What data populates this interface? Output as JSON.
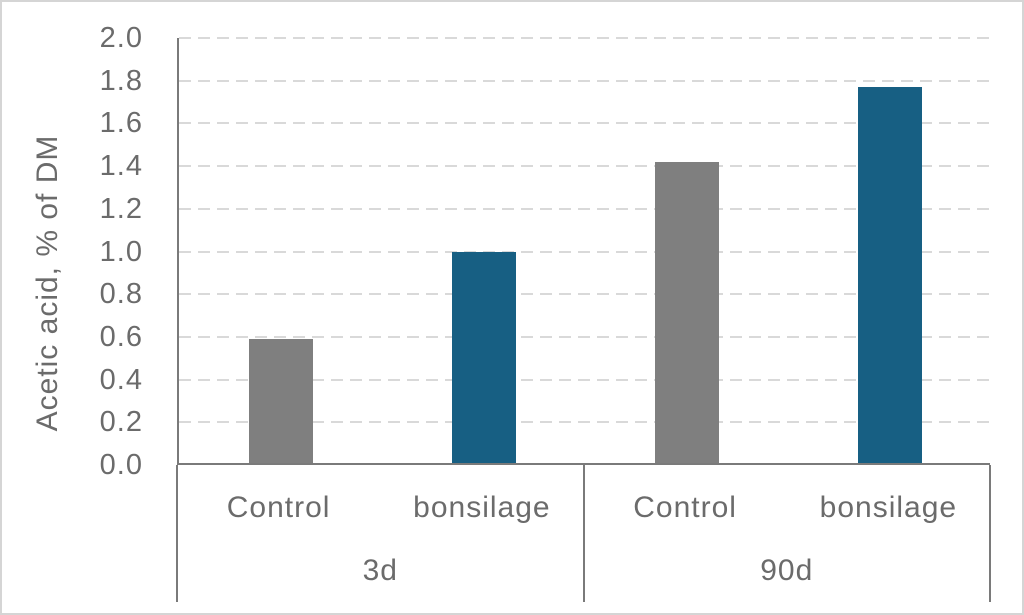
{
  "chart_data": {
    "type": "bar",
    "title": "",
    "ylabel": "Acetic acid, % of DM",
    "xlabel": "",
    "ylim": [
      0,
      2.0
    ],
    "ytick_step": 0.2,
    "y_ticks": [
      "0.0",
      "0.2",
      "0.4",
      "0.6",
      "0.8",
      "1.0",
      "1.2",
      "1.4",
      "1.6",
      "1.8",
      "2.0"
    ],
    "grid": "horizontal-dashed",
    "legend_position": "none",
    "categories": [
      "Control (3d)",
      "bonsilage (3d)",
      "Control (90d)",
      "bonsilage (90d)"
    ],
    "values": [
      0.58,
      0.99,
      1.41,
      1.76
    ],
    "groups": [
      {
        "label": "3d",
        "bars": [
          {
            "label": "Control",
            "series": "Control",
            "value": 0.58
          },
          {
            "label": "bonsilage",
            "series": "bonsilage",
            "value": 0.99
          }
        ]
      },
      {
        "label": "90d",
        "bars": [
          {
            "label": "Control",
            "series": "Control",
            "value": 1.41
          },
          {
            "label": "bonsilage",
            "series": "bonsilage",
            "value": 1.76
          }
        ]
      }
    ],
    "series_colors": {
      "Control": "#7f7f7f",
      "bonsilage": "#175f83"
    },
    "axis_color": "#7a7a7a",
    "grid_color": "#d9d9d9",
    "text_color": "#6b6b6b",
    "frame_border_color": "#d5d5d5"
  }
}
